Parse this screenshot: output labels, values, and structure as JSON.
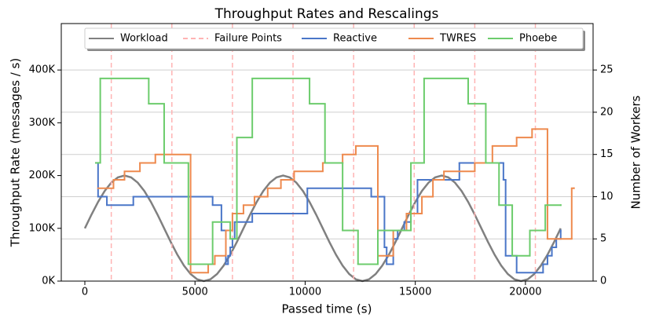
{
  "chart_data": {
    "type": "line",
    "title": "Throughput Rates and Rescalings",
    "xlabel": "Passed time (s)",
    "ylabel": "Throughput Rate (messages / s)",
    "y2label": "Number of Workers",
    "xlim": [
      -1070,
      23070
    ],
    "xticks": [
      0,
      5000,
      10000,
      15000,
      20000
    ],
    "ylim": [
      0,
      488000
    ],
    "yticks": [
      {
        "value": 0,
        "label": "0K"
      },
      {
        "value": 100000,
        "label": "100K"
      },
      {
        "value": 200000,
        "label": "200K"
      },
      {
        "value": 300000,
        "label": "300K"
      },
      {
        "value": 400000,
        "label": "400K"
      }
    ],
    "y2lim": [
      0,
      30.5
    ],
    "y2ticks": [
      0,
      5,
      10,
      15,
      20,
      25
    ],
    "grid": true,
    "legend": "upper center",
    "series": [
      {
        "name": "Workload",
        "color": "#808080",
        "x": [
          0,
          300,
          600,
          900,
          1200,
          1500,
          1800,
          2100,
          2400,
          2700,
          3000,
          3300,
          3600,
          3900,
          4200,
          4500,
          4800,
          5100,
          5400,
          5700,
          6000,
          6300,
          6600,
          6900,
          7200,
          7500,
          7800,
          8100,
          8400,
          8700,
          9000,
          9300,
          9600,
          9900,
          10200,
          10500,
          10800,
          11100,
          11400,
          11700,
          12000,
          12300,
          12600,
          12900,
          13200,
          13500,
          13800,
          14100,
          14400,
          14700,
          15000,
          15300,
          15600,
          15900,
          16200,
          16500,
          16800,
          17100,
          17400,
          17700,
          18000,
          18300,
          18600,
          18900,
          19200,
          19500,
          19800,
          20100,
          20400,
          20700,
          21000,
          21300,
          21600
        ],
        "values": [
          100000,
          125882,
          150000,
          170711,
          186603,
          196593,
          200000,
          196593,
          186603,
          170711,
          150000,
          125882,
          100000,
          74118,
          50000,
          29289,
          13397,
          3407,
          0,
          3407,
          13397,
          29289,
          50000,
          74118,
          100000,
          125882,
          150000,
          170711,
          186603,
          196593,
          200000,
          196593,
          186603,
          170711,
          150000,
          125882,
          100000,
          74118,
          50000,
          29289,
          13397,
          3407,
          0,
          3407,
          13397,
          29289,
          50000,
          74118,
          100000,
          125882,
          150000,
          170711,
          186603,
          196593,
          200000,
          196593,
          186603,
          170711,
          150000,
          125882,
          100000,
          74118,
          50000,
          29289,
          13397,
          3407,
          0,
          3407,
          13397,
          29289,
          50000,
          74118,
          100000
        ]
      },
      {
        "name": "Failure Points",
        "color": "#ffb3b3",
        "linestyle": "dashed",
        "x": [
          1200,
          3950,
          6700,
          9450,
          12200,
          14950,
          17700,
          20450
        ]
      },
      {
        "name": "Reactive",
        "color": "#4a76c8",
        "axis": "y2",
        "x": [
          500,
          600,
          1000,
          2200,
          5800,
          6200,
          6400,
          6500,
          6600,
          6700,
          6800,
          7600,
          10100,
          13000,
          13600,
          13700,
          14000,
          14200,
          14500,
          14800,
          15100,
          17000,
          19000,
          19100,
          19600,
          20800,
          21000,
          21200,
          21400,
          21600
        ],
        "values": [
          14,
          10,
          9,
          10,
          9,
          6,
          2,
          3,
          4,
          5,
          7,
          8,
          11,
          10,
          4,
          2,
          5,
          6,
          7,
          8,
          12,
          14,
          12,
          3,
          1,
          2,
          3,
          4,
          5,
          6
        ]
      },
      {
        "name": "TWRES",
        "color": "#ee8a4e",
        "axis": "y2",
        "x": [
          600,
          1300,
          1800,
          2500,
          3200,
          4800,
          5600,
          5900,
          6400,
          6700,
          7200,
          7700,
          8300,
          8900,
          9500,
          10800,
          11700,
          12300,
          13300,
          14000,
          14600,
          15300,
          15800,
          16300,
          17700,
          18500,
          19600,
          20300,
          21000,
          22100,
          22200
        ],
        "values": [
          11,
          12,
          13,
          14,
          15,
          1,
          2,
          3,
          6,
          8,
          9,
          10,
          11,
          12,
          13,
          14,
          15,
          16,
          3,
          6,
          8,
          10,
          12,
          13,
          14,
          16,
          17,
          18,
          5,
          11,
          11
        ]
      },
      {
        "name": "Phoebe",
        "color": "#6ccc6c",
        "axis": "y2",
        "x": [
          500,
          700,
          2900,
          3600,
          4700,
          5800,
          6600,
          6900,
          7600,
          10200,
          10900,
          11700,
          12400,
          13300,
          14800,
          15400,
          17400,
          18200,
          18800,
          19400,
          20200,
          20900,
          21600
        ],
        "values": [
          14,
          24,
          21,
          14,
          2,
          7,
          5,
          17,
          24,
          21,
          14,
          6,
          2,
          6,
          14,
          24,
          21,
          14,
          9,
          3,
          6,
          9,
          9
        ]
      }
    ]
  }
}
